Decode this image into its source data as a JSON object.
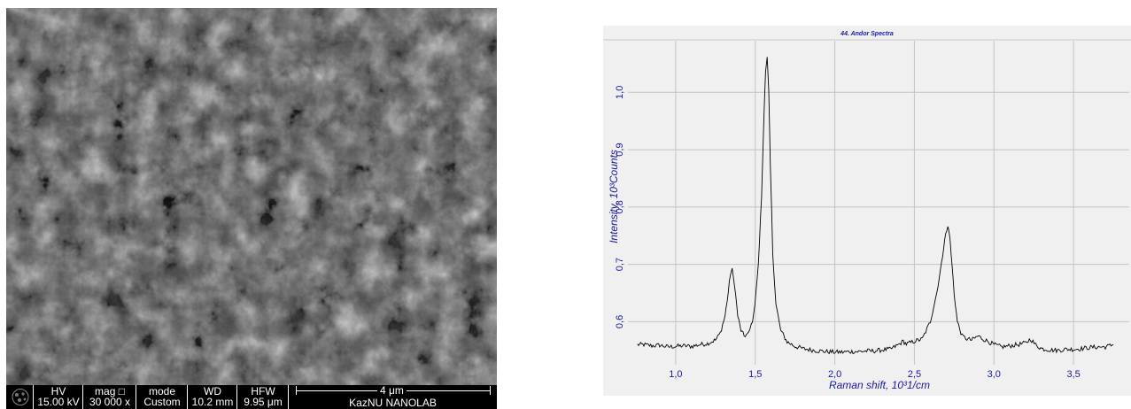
{
  "sem_panel": {
    "info_bar": {
      "hv_label": "HV",
      "hv_value": "15.00 kV",
      "mag_label": "mag □",
      "mag_value": "30 000 x",
      "mode_label": "mode",
      "mode_value": "Custom",
      "wd_label": "WD",
      "wd_value": "10.2 mm",
      "hfw_label": "HFW",
      "hfw_value": "9.95 μm",
      "scale_label": "4 μm",
      "lab_label": "KazNU NANOLAB"
    }
  },
  "chart_data": {
    "type": "line",
    "title": "44. Andor Spectra",
    "xlabel": "Raman shift, 10³1/cm",
    "ylabel": "Intensity, 10³Counts",
    "xlim": [
      0.7,
      3.85
    ],
    "ylim": [
      0.525,
      1.09
    ],
    "xticks": [
      1.0,
      1.5,
      2.0,
      2.5,
      3.0,
      3.5
    ],
    "xtick_labels": [
      "1,0",
      "1,5",
      "2,0",
      "2,5",
      "3,0",
      "3,5"
    ],
    "yticks": [
      0.6,
      0.7,
      0.8,
      0.9,
      1.0
    ],
    "ytick_labels": [
      "0,6",
      "0,7",
      "0,8",
      "0,9",
      "1,0"
    ],
    "grid": true,
    "series": [
      {
        "color": "#000000",
        "x": [
          0.76,
          0.8,
          0.85,
          0.9,
          0.95,
          1.0,
          1.05,
          1.1,
          1.15,
          1.2,
          1.25,
          1.28,
          1.31,
          1.33,
          1.345,
          1.355,
          1.37,
          1.39,
          1.41,
          1.43,
          1.46,
          1.49,
          1.52,
          1.54,
          1.555,
          1.565,
          1.575,
          1.585,
          1.595,
          1.61,
          1.63,
          1.66,
          1.7,
          1.75,
          1.8,
          1.85,
          1.9,
          1.95,
          2.0,
          2.05,
          2.1,
          2.15,
          2.2,
          2.25,
          2.3,
          2.35,
          2.4,
          2.43,
          2.45,
          2.47,
          2.5,
          2.55,
          2.6,
          2.64,
          2.67,
          2.69,
          2.71,
          2.72,
          2.73,
          2.75,
          2.77,
          2.8,
          2.83,
          2.86,
          2.9,
          2.93,
          2.96,
          3.0,
          3.05,
          3.1,
          3.15,
          3.2,
          3.23,
          3.26,
          3.3,
          3.35,
          3.4,
          3.45,
          3.5,
          3.55,
          3.6,
          3.65,
          3.7,
          3.75
        ],
        "y": [
          0.56,
          0.56,
          0.558,
          0.559,
          0.556,
          0.557,
          0.558,
          0.557,
          0.56,
          0.562,
          0.568,
          0.58,
          0.61,
          0.65,
          0.685,
          0.69,
          0.665,
          0.61,
          0.585,
          0.575,
          0.58,
          0.61,
          0.7,
          0.82,
          0.96,
          1.04,
          1.06,
          1.0,
          0.87,
          0.72,
          0.63,
          0.585,
          0.565,
          0.557,
          0.553,
          0.551,
          0.549,
          0.548,
          0.547,
          0.547,
          0.548,
          0.548,
          0.549,
          0.549,
          0.551,
          0.552,
          0.56,
          0.566,
          0.561,
          0.563,
          0.566,
          0.57,
          0.6,
          0.65,
          0.7,
          0.745,
          0.765,
          0.755,
          0.72,
          0.65,
          0.6,
          0.575,
          0.57,
          0.568,
          0.575,
          0.57,
          0.566,
          0.56,
          0.556,
          0.558,
          0.56,
          0.563,
          0.57,
          0.56,
          0.553,
          0.551,
          0.55,
          0.552,
          0.552,
          0.553,
          0.555,
          0.556,
          0.556,
          0.56
        ]
      }
    ]
  }
}
